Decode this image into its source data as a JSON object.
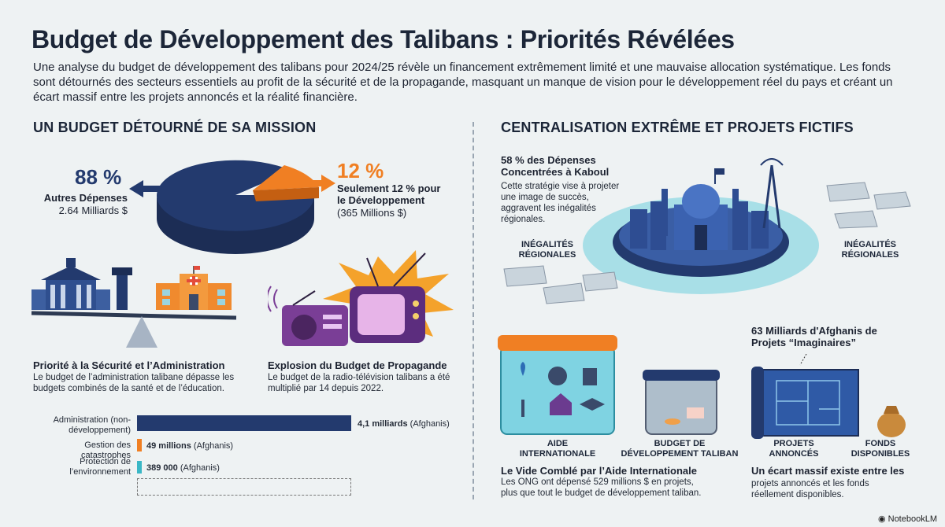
{
  "header": {
    "title": "Budget de Développement des Talibans : Priorités Révélées",
    "intro": "Une analyse du budget de développement des talibans pour 2024/25 révèle un financement extrêmement limité et une mauvaise allocation systématique. Les fonds sont détournés des secteurs essentiels au profit de la sécurité et de la propagande, masquant un manque de vision pour le développement réel du pays et créant un écart massif entre les projets annoncés et la réalité financière."
  },
  "left": {
    "heading": "UN BUDGET DÉTOURNÉ DE SA MISSION",
    "pie": {
      "other_pct": "88 %",
      "other_label": "Autres Dépenses",
      "other_value": "2.64 Milliards $",
      "dev_pct": "12 %",
      "dev_label": "Seulement 12 % pour le Développement",
      "dev_value": "(365 Millions $)"
    },
    "security": {
      "title": "Priorité à la Sécurité et l’Administration",
      "text": "Le budget de l’administration talibane dépasse les budgets combinés de la santé et de l’éducation."
    },
    "propaganda": {
      "title": "Explosion du Budget de Propagande",
      "text": "Le budget de la radio-télévision talibans a été multiplié par 14 depuis 2022."
    },
    "bars": [
      {
        "label": "Administration (non-développement)",
        "value_bold": "4,1 milliards",
        "value_unit": "(Afghanis)",
        "fraction": 1.0,
        "color": "#233a6e"
      },
      {
        "label": "Gestion des catastrophes",
        "value_bold": "49 millions",
        "value_unit": "(Afghanis)",
        "fraction": 0.012,
        "color": "#f07f23"
      },
      {
        "label": "Protection de l’environnement",
        "value_bold": "389 000",
        "value_unit": "(Afghanis)",
        "fraction": 0.0001,
        "color": "#3ab7c6"
      }
    ]
  },
  "right": {
    "heading": "CENTRALISATION EXTRÊME ET PROJETS FICTIFS",
    "kabul": {
      "title": "58 % des Dépenses Concentrées à Kaboul",
      "text": "Cette stratégie vise à projeter une image de succès, aggravent les inégalités régionales.",
      "inequality_left": "INÉGALITÉS RÉGIONALES",
      "inequality_right": "INÉGALITÉS RÉGIONALES"
    },
    "aid": {
      "label_intl": "AIDE INTERNATIONALE",
      "label_budget": "BUDGET DE DÉVELOPPEMENT TALIBAN",
      "title": "Le Vide Comblé par l’Aide Internationale",
      "text": "Les ONG ont dépensé 529 millions $ en projets, plus que tout le budget de développement taliban."
    },
    "projects": {
      "title": "63 Milliards d'Afghanis de Projets “Imaginaires”",
      "label_announced": "PROJETS ANNONCÉS",
      "label_funds": "FONDS DISPONIBLES",
      "gap_title": "Un écart massif existe entre les",
      "gap_text": "projets annoncés et les fonds réellement disponibles."
    }
  },
  "footer": {
    "brand": "NotebookLM"
  },
  "colors": {
    "navy": "#233a6e",
    "orange": "#f07f23",
    "teal": "#3ab7c6",
    "purple": "#6b3b8f"
  }
}
